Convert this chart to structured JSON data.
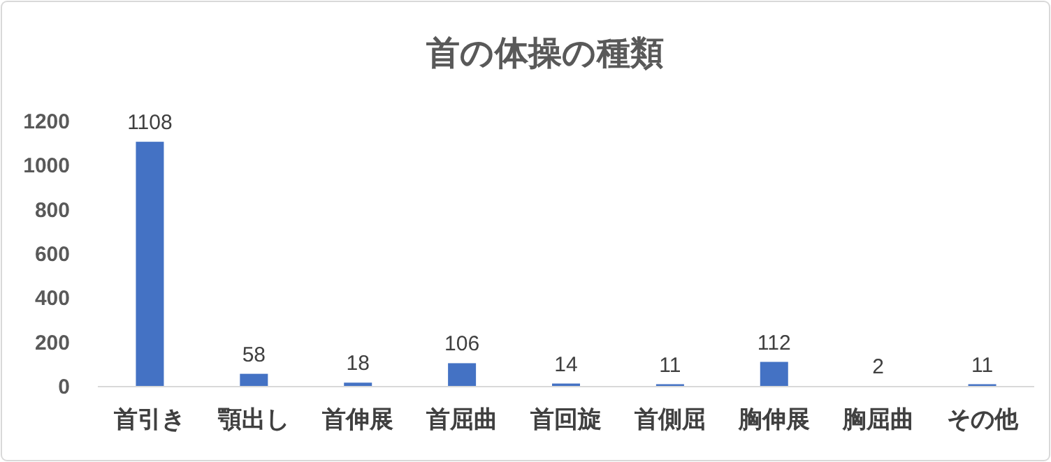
{
  "chart_data": {
    "type": "bar",
    "title": "首の体操の種類",
    "categories": [
      "首引き",
      "顎出し",
      "首伸展",
      "首屈曲",
      "首回旋",
      "首側屈",
      "胸伸展",
      "胸屈曲",
      "その他"
    ],
    "values": [
      1108,
      58,
      18,
      106,
      14,
      11,
      112,
      2,
      11
    ],
    "color": "#4472c4",
    "ylim": [
      0,
      1200
    ],
    "yticks": [
      0,
      200,
      400,
      600,
      800,
      1000,
      1200
    ],
    "data_labels": true
  }
}
